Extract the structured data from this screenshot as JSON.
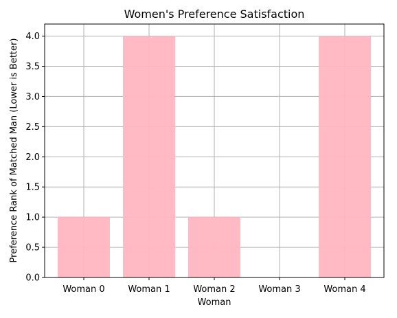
{
  "chart_data": {
    "type": "bar",
    "title": "Women's Preference Satisfaction",
    "xlabel": "Woman",
    "ylabel": "Preference Rank of Matched Man (Lower is Better)",
    "categories": [
      "Woman 0",
      "Woman 1",
      "Woman 2",
      "Woman 3",
      "Woman 4"
    ],
    "values": [
      1,
      4,
      1,
      0,
      4
    ],
    "ylim": [
      0,
      4.2
    ],
    "yticks": [
      0.0,
      0.5,
      1.0,
      1.5,
      2.0,
      2.5,
      3.0,
      3.5,
      4.0
    ],
    "ytick_labels": [
      "0.0",
      "0.5",
      "1.0",
      "1.5",
      "2.0",
      "2.5",
      "3.0",
      "3.5",
      "4.0"
    ],
    "grid": true,
    "bar_color": "#ffb6c1",
    "grid_color": "#b0b0b0"
  }
}
